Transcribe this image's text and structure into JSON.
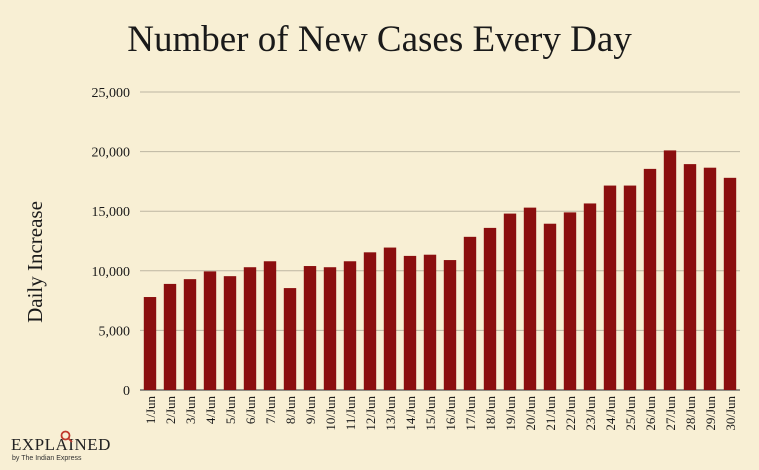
{
  "chart_data": {
    "type": "bar",
    "title": "Number of New Cases Every Day",
    "xlabel": "",
    "ylabel": "Daily Increase",
    "ylim": [
      0,
      25000
    ],
    "y_ticks": [
      "0",
      "5,000",
      "10,000",
      "15,000",
      "20,000",
      "25,000"
    ],
    "grid": "horizontal",
    "bar_color": "#8b0f0f",
    "categories": [
      "1/Jun",
      "2/Jun",
      "3/Jun",
      "4/Jun",
      "5/Jun",
      "6/Jun",
      "7/Jun",
      "8/Jun",
      "9/Jun",
      "10/Jun",
      "11/Jun",
      "12/Jun",
      "13/Jun",
      "14/Jun",
      "15/Jun",
      "16/Jun",
      "17/Jun",
      "18/Jun",
      "19/Jun",
      "20/Jun",
      "21/Jun",
      "22/Jun",
      "23/Jun",
      "24/Jun",
      "25/Jun",
      "26/Jun",
      "27/Jun",
      "28/Jun",
      "29/Jun",
      "30/Jun"
    ],
    "values": [
      7800,
      8900,
      9300,
      9950,
      9550,
      10300,
      10800,
      8550,
      10400,
      10300,
      10800,
      11550,
      11950,
      11250,
      11350,
      10900,
      12850,
      13600,
      14800,
      15300,
      13950,
      14900,
      15650,
      17150,
      17150,
      18550,
      20100,
      18950,
      18650,
      17800
    ]
  },
  "branding": {
    "logo_text": "EXPLAINED",
    "logo_subtext": "by The Indian Express",
    "logo_accent_color": "#c0392b"
  }
}
